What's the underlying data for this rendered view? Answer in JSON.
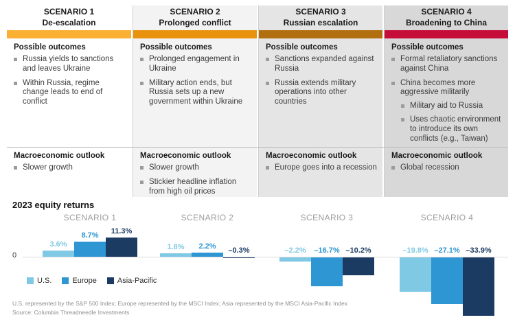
{
  "scenarios": [
    {
      "title": "SCENARIO 1",
      "subtitle": "De-escalation",
      "ribbon_color": "#FBB034",
      "column_bg": "#FFFFFF",
      "outcomes_heading": "Possible outcomes",
      "outcomes": [
        "Russia yields to sanctions and leaves Ukraine",
        "Within Russia, regime change leads to end of conflict"
      ],
      "macro_heading": "Macroeconomic outlook",
      "macro": [
        "Slower growth"
      ]
    },
    {
      "title": "SCENARIO 2",
      "subtitle": "Prolonged conflict",
      "ribbon_color": "#E8920E",
      "column_bg": "#F3F3F3",
      "outcomes_heading": "Possible outcomes",
      "outcomes": [
        "Prolonged engagement in Ukraine",
        "Military action ends, but Russia sets up a new government within Ukraine"
      ],
      "macro_heading": "Macroeconomic outlook",
      "macro": [
        "Slower growth",
        "Stickier headline inflation from high oil prices"
      ]
    },
    {
      "title": "SCENARIO 3",
      "subtitle": "Russian escalation",
      "ribbon_color": "#B26F10",
      "column_bg": "#E5E5E5",
      "outcomes_heading": "Possible outcomes",
      "outcomes": [
        "Sanctions expanded against Russia",
        "Russia extends military operations into other countries"
      ],
      "macro_heading": "Macroeconomic outlook",
      "macro": [
        "Europe goes into a recession"
      ]
    },
    {
      "title": "SCENARIO 4",
      "subtitle": "Broadening to China",
      "ribbon_color": "#C60C39",
      "column_bg": "#D8D8D8",
      "outcomes_heading": "Possible outcomes",
      "outcomes": [
        "Formal retaliatory sanctions against China",
        "China becomes more aggressive militarily"
      ],
      "outcomes_subitems": [
        "Military aid to Russia",
        "Uses chaotic environment to introduce its own conflicts (e.g., Taiwan)"
      ],
      "macro_heading": "Macroeconomic outlook",
      "macro": [
        "Global recession"
      ]
    }
  ],
  "chart_data": {
    "type": "bar",
    "title": "2023 equity returns",
    "categories": [
      "SCENARIO 1",
      "SCENARIO 2",
      "SCENARIO 3",
      "SCENARIO 4"
    ],
    "series": [
      {
        "name": "U.S.",
        "color": "#7FC9E5",
        "values": [
          3.6,
          1.8,
          -2.2,
          -19.8
        ],
        "labels": [
          "3.6%",
          "1.8%",
          "–2.2%",
          "–19.8%"
        ]
      },
      {
        "name": "Europe",
        "color": "#2E96D2",
        "values": [
          8.7,
          2.2,
          -16.7,
          -27.1
        ],
        "labels": [
          "8.7%",
          "2.2%",
          "–16.7%",
          "–27.1%"
        ]
      },
      {
        "name": "Asia-Pacific",
        "color": "#1C3B63",
        "values": [
          11.3,
          -0.3,
          -10.2,
          -33.9
        ],
        "labels": [
          "11.3%",
          "–0.3%",
          "–10.2%",
          "–33.9%"
        ]
      }
    ],
    "xlabel": "",
    "ylabel": "",
    "zero_label": "0",
    "ylim": [
      -34,
      12
    ],
    "grid": false,
    "legend_position": "bottom-left"
  },
  "footnotes": {
    "line1": "U.S. represented by the S&P 500 Index; Europe represented by the MSCI Index; Asia represented by the MSCI Asia-Pacific Index",
    "line2": "Source: Columbia Threadneedle Investments"
  }
}
